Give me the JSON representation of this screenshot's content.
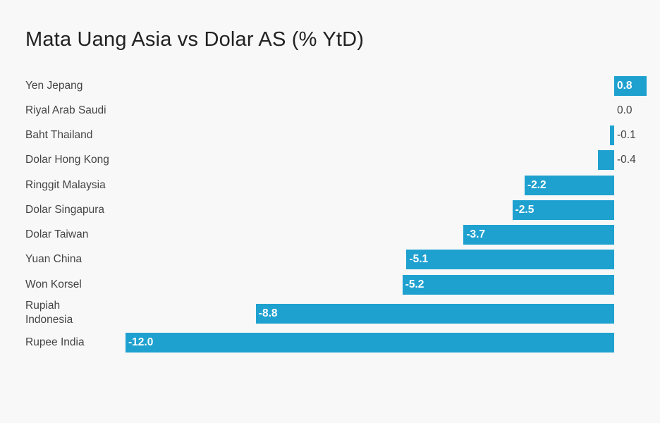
{
  "chart_data": {
    "type": "bar",
    "orientation": "horizontal",
    "title": "Mata Uang Asia vs Dolar AS (% YtD)",
    "xlabel": "",
    "ylabel": "",
    "grid": false,
    "legend": null,
    "bar_color": "#1fa1d0",
    "categories": [
      "Yen Jepang",
      "Riyal Arab Saudi",
      "Baht Thailand",
      "Dolar Hong Kong",
      "Ringgit Malaysia",
      "Dolar Singapura",
      "Dolar Taiwan",
      "Yuan China",
      "Won Korsel",
      "Rupiah Indonesia",
      "Rupee India"
    ],
    "values": [
      0.8,
      0.0,
      -0.1,
      -0.4,
      -2.2,
      -2.5,
      -3.7,
      -5.1,
      -5.2,
      -8.8,
      -12.0
    ],
    "value_labels": [
      "0.8",
      "0.0",
      "-0.1",
      "-0.4",
      "-2.2",
      "-2.5",
      "-3.7",
      "-5.1",
      "-5.2",
      "-8.8",
      "-12.0"
    ],
    "xlim": [
      -12.0,
      0.8
    ]
  },
  "header": {
    "title": "Mata Uang Asia vs Dolar AS (% YtD)"
  }
}
